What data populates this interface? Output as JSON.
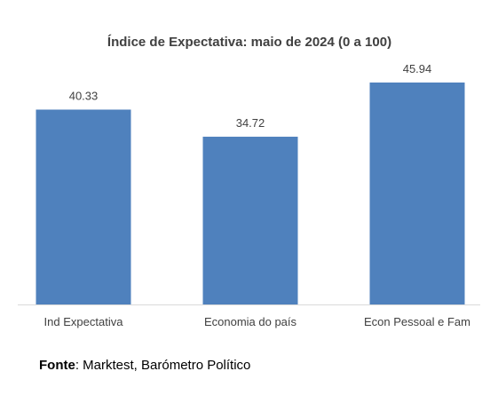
{
  "chart_data": {
    "type": "bar",
    "title": "Índice de Expectativa: maio de 2024 (0 a 100)",
    "categories": [
      "Ind Expectativa",
      "Economia do país",
      "Econ Pessoal e Fam"
    ],
    "values": [
      40.33,
      34.72,
      45.94
    ],
    "value_labels": [
      "40.33",
      "34.72",
      "45.94"
    ],
    "xlabel": "",
    "ylabel": "",
    "y_axis_visible": false,
    "grid": false,
    "legend": "none",
    "bar_color": "#4F81BD"
  },
  "source": {
    "label": "Fonte",
    "separator": ": ",
    "text": "Marktest, Barómetro Político"
  }
}
